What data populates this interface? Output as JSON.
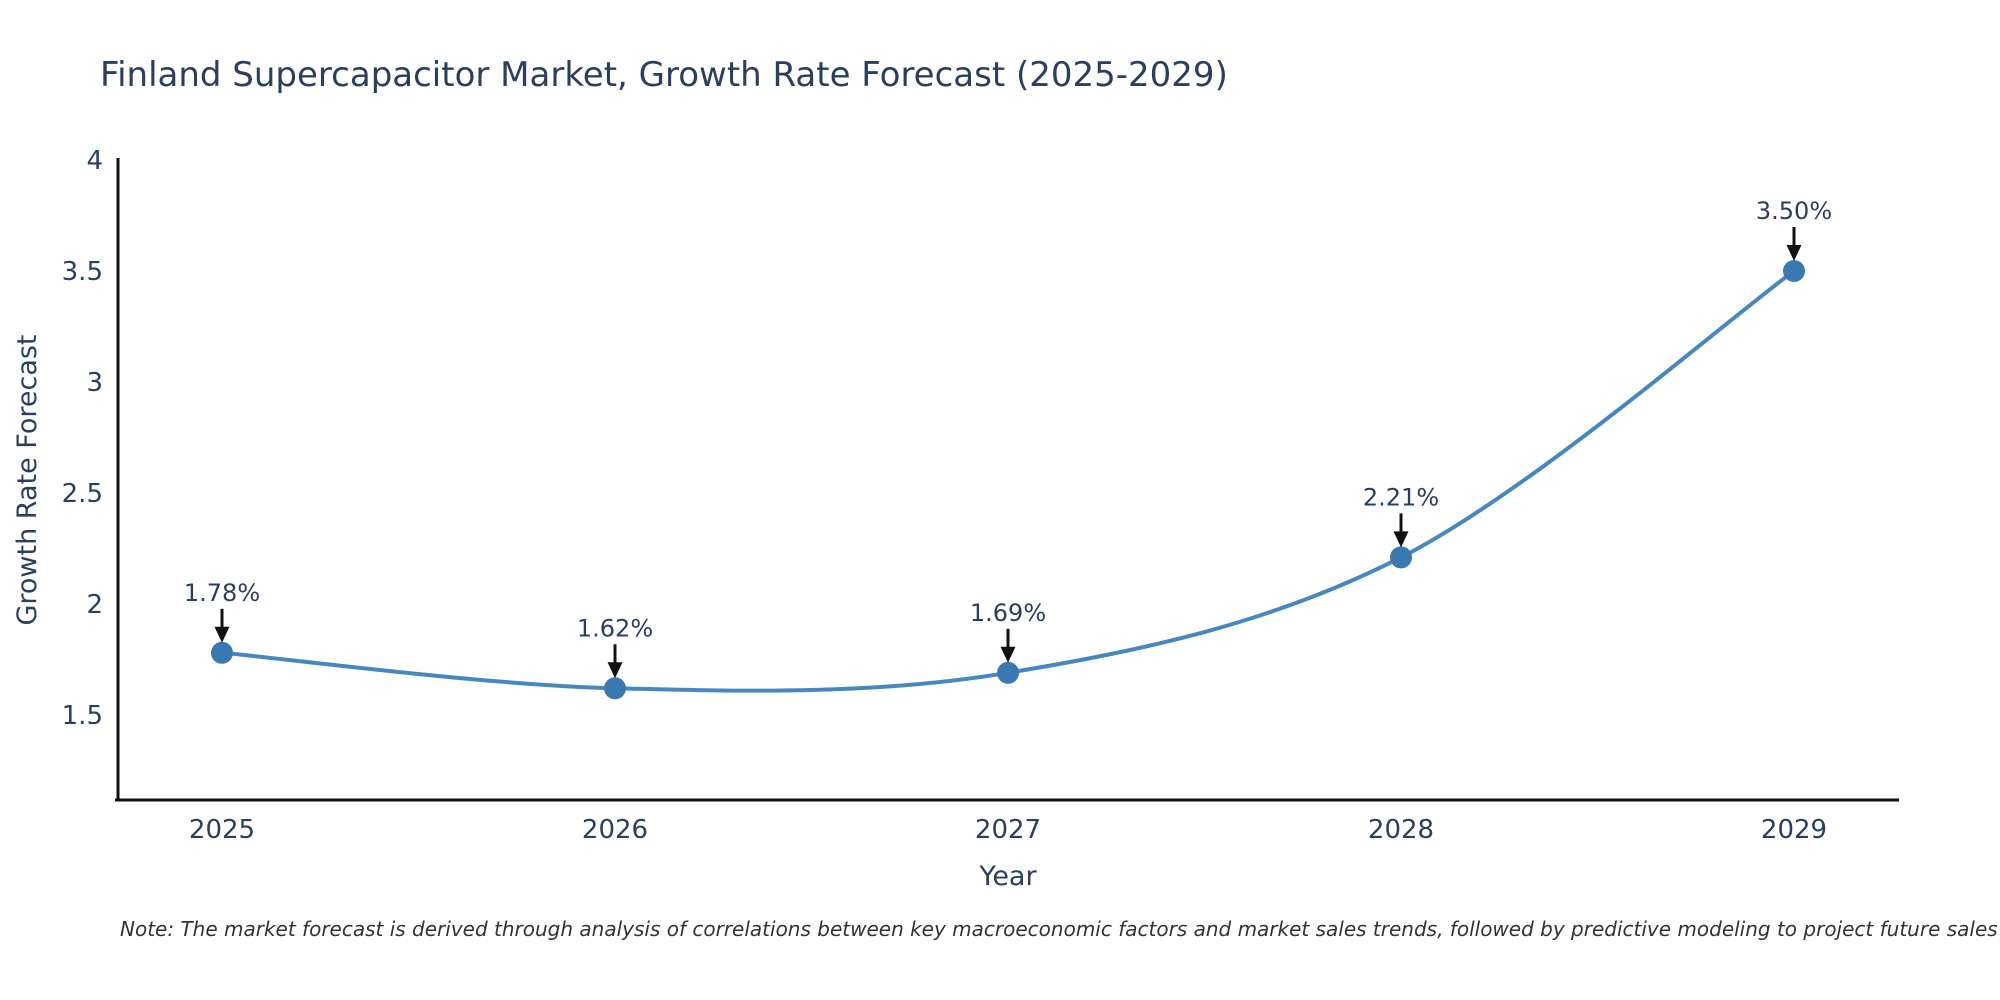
{
  "note": "Note: The market forecast is derived through analysis of correlations between key macroeconomic factors and market sales trends, followed by predictive modeling to project future sales",
  "chart_data": {
    "type": "line",
    "title": "Finland Supercapacitor Market, Growth Rate Forecast (2025-2029)",
    "xlabel": "Year",
    "ylabel": "Growth Rate Forecast",
    "x": [
      2025,
      2026,
      2027,
      2028,
      2029
    ],
    "xticklabels": [
      "2025",
      "2026",
      "2027",
      "2028",
      "2029"
    ],
    "values": [
      1.78,
      1.62,
      1.69,
      2.21,
      3.5
    ],
    "point_labels": [
      "1.78%",
      "1.62%",
      "1.69%",
      "2.21%",
      "3.50%"
    ],
    "yticks": [
      "1.5",
      "2",
      "2.5",
      "3",
      "3.5",
      "4"
    ],
    "ytick_values": [
      1.5,
      2,
      2.5,
      3,
      3.5,
      4
    ],
    "ylim": [
      1.117,
      4.0
    ],
    "grid": false,
    "legend": false,
    "line_color": "#4687c1",
    "marker_color": "#3a78b2",
    "axis_color": "#111111",
    "text_color": "#2a3f5f",
    "arrow_color": "#111111",
    "note_color": "#333333"
  }
}
